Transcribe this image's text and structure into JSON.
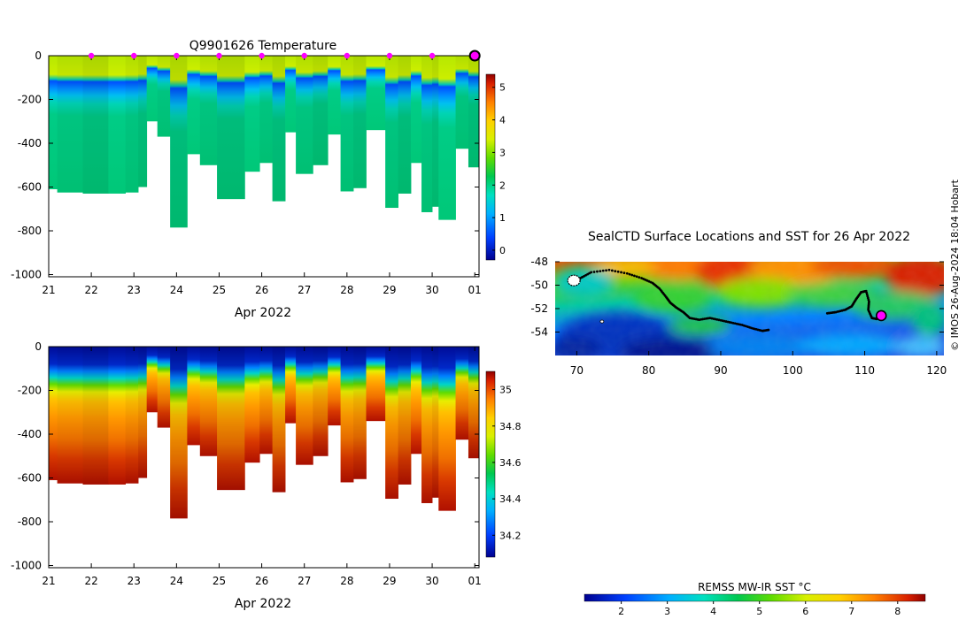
{
  "chart_data": [
    {
      "type": "heatmap",
      "id": "temperature",
      "title": "Q9901626  Temperature",
      "xlabel": "Apr 2022",
      "ylabel": "",
      "x_ticks": [
        "21",
        "22",
        "23",
        "24",
        "25",
        "26",
        "27",
        "28",
        "29",
        "30",
        "01"
      ],
      "xlim": [
        21,
        31.1
      ],
      "y_ticks": [
        0,
        -200,
        -400,
        -600,
        -800,
        -1000
      ],
      "ylim": [
        -1010,
        0
      ],
      "colorbar_ticks": [
        0,
        1,
        2,
        3,
        4,
        5
      ],
      "clim": [
        -0.3,
        5.4
      ],
      "colormap": "rainbow",
      "profile_markers_days": [
        22,
        23,
        24,
        25,
        26,
        27,
        28,
        29,
        30
      ],
      "marker_color": "#ff00ff",
      "last_profile_marker_day": 31.0,
      "surface_temperature_c": 3.2,
      "mixed_layer_depth_m": -110,
      "temperature_min_depth_m": -160,
      "temperature_min_c": 0.2,
      "deep_temperature_c": 2.2,
      "profile_max_depth_m": [
        [
          21.0,
          -610
        ],
        [
          21.2,
          -625
        ],
        [
          21.8,
          -630
        ],
        [
          22.4,
          -630
        ],
        [
          22.8,
          -625
        ],
        [
          23.1,
          -600
        ],
        [
          23.3,
          -300
        ],
        [
          23.55,
          -370
        ],
        [
          23.85,
          -785
        ],
        [
          24.25,
          -450
        ],
        [
          24.55,
          -500
        ],
        [
          24.95,
          -655
        ],
        [
          25.6,
          -530
        ],
        [
          25.95,
          -490
        ],
        [
          26.25,
          -665
        ],
        [
          26.55,
          -350
        ],
        [
          26.8,
          -540
        ],
        [
          27.2,
          -500
        ],
        [
          27.55,
          -360
        ],
        [
          27.85,
          -620
        ],
        [
          28.15,
          -605
        ],
        [
          28.45,
          -340
        ],
        [
          28.9,
          -695
        ],
        [
          29.2,
          -630
        ],
        [
          29.5,
          -490
        ],
        [
          29.75,
          -715
        ],
        [
          30.0,
          -690
        ],
        [
          30.15,
          -750
        ],
        [
          30.55,
          -425
        ],
        [
          30.85,
          -510
        ]
      ]
    },
    {
      "type": "heatmap",
      "id": "salinity",
      "title": "",
      "xlabel": "Apr 2022",
      "ylabel": "",
      "x_ticks": [
        "21",
        "22",
        "23",
        "24",
        "25",
        "26",
        "27",
        "28",
        "29",
        "30",
        "01"
      ],
      "xlim": [
        21,
        31.1
      ],
      "y_ticks": [
        0,
        -200,
        -400,
        -600,
        -800,
        -1000
      ],
      "ylim": [
        -1010,
        0
      ],
      "colorbar_ticks": [
        34.2,
        34.4,
        34.6,
        34.8,
        35
      ],
      "colorbar_tick_labels": [
        "34.2",
        "34.4",
        "34.6",
        "34.8",
        "35"
      ],
      "clim": [
        34.08,
        35.1
      ],
      "colormap": "rainbow",
      "surface_salinity": 34.05,
      "deep_salinity": 34.95
    },
    {
      "type": "map",
      "id": "sst-map",
      "title": "SealCTD Surface Locations and SST for 26 Apr 2022",
      "xlabel": "",
      "ylabel": "",
      "x_ticks": [
        70,
        80,
        90,
        100,
        110,
        120
      ],
      "xlim": [
        67,
        121
      ],
      "y_ticks": [
        -48,
        -50,
        -52,
        -54
      ],
      "ylim": [
        -56,
        -48
      ],
      "colorbar_label": "REMSS MW-IR SST °C",
      "colorbar_ticks": [
        2,
        3,
        4,
        5,
        6,
        7,
        8
      ],
      "clim": [
        1.2,
        8.6
      ],
      "colormap": "rainbow",
      "current_position": [
        112.3,
        -52.6
      ],
      "current_position_color": "#ff00ff",
      "track_lon_lat": [
        [
          69.2,
          -49.6
        ],
        [
          70.5,
          -49.4
        ],
        [
          72.0,
          -48.9
        ],
        [
          74.5,
          -48.7
        ],
        [
          77.0,
          -49.0
        ],
        [
          79.0,
          -49.4
        ],
        [
          80.5,
          -49.8
        ],
        [
          81.5,
          -50.3
        ],
        [
          82.4,
          -51.0
        ],
        [
          83.0,
          -51.5
        ],
        [
          83.8,
          -51.9
        ],
        [
          84.8,
          -52.3
        ],
        [
          85.7,
          -52.8
        ],
        [
          87.0,
          -52.95
        ],
        [
          88.5,
          -52.8
        ],
        [
          90.0,
          -53.0
        ],
        [
          91.5,
          -53.2
        ],
        [
          93.0,
          -53.4
        ],
        [
          94.5,
          -53.7
        ],
        [
          95.8,
          -53.9
        ],
        [
          96.8,
          -53.8
        ],
        [
          104.8,
          -52.4
        ],
        [
          106.0,
          -52.3
        ],
        [
          107.3,
          -52.1
        ],
        [
          108.2,
          -51.8
        ],
        [
          108.8,
          -51.2
        ],
        [
          109.5,
          -50.6
        ],
        [
          110.2,
          -50.5
        ],
        [
          110.6,
          -51.4
        ],
        [
          110.5,
          -52.1
        ],
        [
          111.0,
          -52.8
        ],
        [
          111.8,
          -52.9
        ]
      ]
    }
  ],
  "credit": "© IMOS 26-Aug-2024 18:04 Hobart"
}
